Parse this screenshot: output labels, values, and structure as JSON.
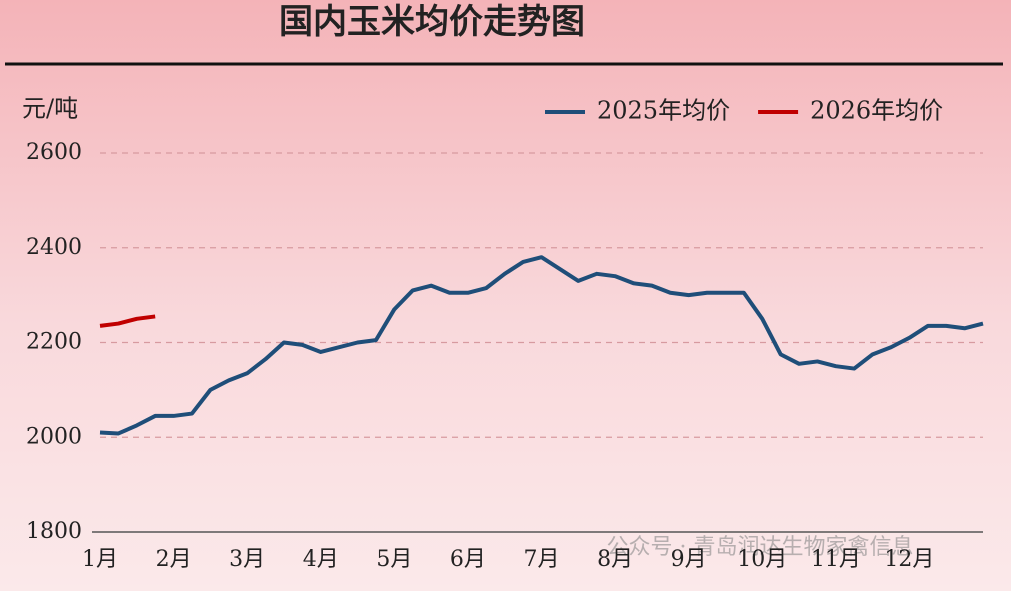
{
  "chart_data": {
    "type": "line",
    "title": "国内玉米均价走势图",
    "y_label": "元/吨",
    "watermark": "公众号 · 青岛润达生物家禽信息",
    "categories": [
      "1月",
      null,
      null,
      null,
      "2月",
      null,
      null,
      null,
      "3月",
      null,
      null,
      null,
      "4月",
      null,
      null,
      null,
      "5月",
      null,
      null,
      null,
      "6月",
      null,
      null,
      null,
      "7月",
      null,
      null,
      null,
      "8月",
      null,
      null,
      null,
      "9月",
      null,
      null,
      null,
      "10月",
      null,
      null,
      null,
      "11月",
      null,
      null,
      null,
      "12月",
      null,
      null,
      null,
      null
    ],
    "series": [
      {
        "name": "2025年均价",
        "color": "#1f4e79",
        "values": [
          2010,
          2008,
          2025,
          2045,
          2045,
          2050,
          2100,
          2120,
          2135,
          2165,
          2200,
          2195,
          2180,
          2190,
          2200,
          2205,
          2270,
          2310,
          2320,
          2305,
          2305,
          2315,
          2345,
          2370,
          2380,
          2355,
          2330,
          2345,
          2340,
          2325,
          2320,
          2305,
          2300,
          2305,
          2305,
          2305,
          2250,
          2175,
          2155,
          2160,
          2150,
          2145,
          2175,
          2190,
          2210,
          2235,
          2235,
          2230,
          2240
        ]
      },
      {
        "name": "2026年均价",
        "color": "#c00000",
        "values": [
          2235,
          2240,
          2250,
          2255,
          null,
          null,
          null,
          null,
          null,
          null,
          null,
          null,
          null,
          null,
          null,
          null,
          null,
          null,
          null,
          null,
          null,
          null,
          null,
          null,
          null,
          null,
          null,
          null,
          null,
          null,
          null,
          null,
          null,
          null,
          null,
          null,
          null,
          null,
          null,
          null,
          null,
          null,
          null,
          null,
          null,
          null,
          null,
          null,
          null
        ]
      }
    ],
    "ylim": [
      1800,
      2600
    ],
    "yticks": [
      1800,
      2000,
      2200,
      2400,
      2600
    ],
    "grid": true,
    "legend": "top-right"
  }
}
